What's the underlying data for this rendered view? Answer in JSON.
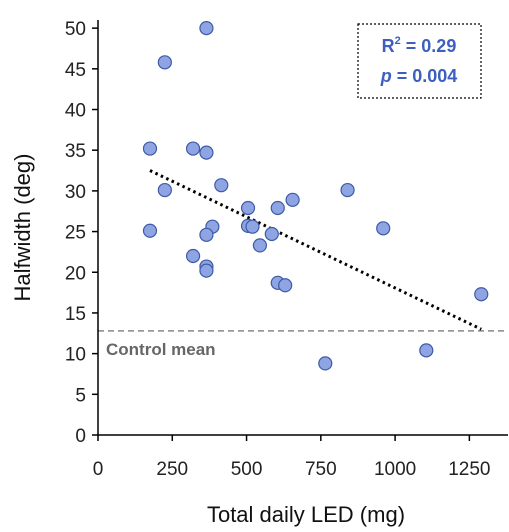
{
  "chart_data": {
    "type": "scatter",
    "xlabel": "Total daily LED (mg)",
    "ylabel": "Halfwidth (deg)",
    "xlim": [
      0,
      1380
    ],
    "ylim": [
      0,
      51
    ],
    "xticks": [
      0,
      250,
      500,
      750,
      1000,
      1250
    ],
    "yticks": [
      0,
      5,
      10,
      15,
      20,
      25,
      30,
      35,
      40,
      45,
      50
    ],
    "x_tick_labels": [
      "0",
      "250",
      "500",
      "750",
      "1000",
      "1250"
    ],
    "y_tick_labels": [
      "0",
      "5",
      "10",
      "15",
      "20",
      "25",
      "30",
      "35",
      "40",
      "45",
      "50"
    ],
    "grid": false,
    "point_color": "#8fa5e3",
    "point_edge_color": "#3d5aa6",
    "points": [
      {
        "x": 365,
        "y": 50
      },
      {
        "x": 225,
        "y": 45.8
      },
      {
        "x": 175,
        "y": 35.2
      },
      {
        "x": 320,
        "y": 35.2
      },
      {
        "x": 365,
        "y": 34.7
      },
      {
        "x": 225,
        "y": 30.1
      },
      {
        "x": 415,
        "y": 30.7
      },
      {
        "x": 840,
        "y": 30.1
      },
      {
        "x": 655,
        "y": 28.9
      },
      {
        "x": 505,
        "y": 27.9
      },
      {
        "x": 605,
        "y": 27.9
      },
      {
        "x": 505,
        "y": 25.7
      },
      {
        "x": 520,
        "y": 25.6
      },
      {
        "x": 385,
        "y": 25.6
      },
      {
        "x": 960,
        "y": 25.4
      },
      {
        "x": 175,
        "y": 25.1
      },
      {
        "x": 365,
        "y": 24.6
      },
      {
        "x": 585,
        "y": 24.7
      },
      {
        "x": 545,
        "y": 23.3
      },
      {
        "x": 320,
        "y": 22
      },
      {
        "x": 365,
        "y": 20.7
      },
      {
        "x": 365,
        "y": 20.2
      },
      {
        "x": 605,
        "y": 18.7
      },
      {
        "x": 630,
        "y": 18.4
      },
      {
        "x": 1290,
        "y": 17.3
      },
      {
        "x": 1105,
        "y": 10.4
      },
      {
        "x": 765,
        "y": 8.8
      }
    ],
    "trendline": {
      "x": [
        175,
        1290
      ],
      "y": [
        32.5,
        13
      ],
      "style": "dotted",
      "color": "#000000"
    },
    "reference_line": {
      "y": 12.8,
      "label": "Control mean",
      "style": "dashed",
      "color": "#888888"
    },
    "stats_box": {
      "r2_label": "R",
      "r2_sup": "2",
      "r2_value": " = 0.29",
      "p_label": "p",
      "p_value": " = 0.004",
      "color": "#3d5fbf"
    }
  }
}
